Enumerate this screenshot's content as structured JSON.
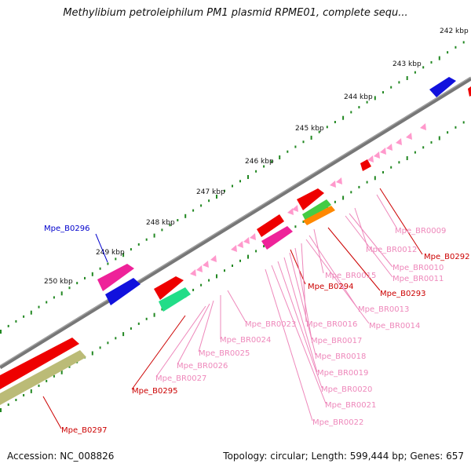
{
  "title": "Methylibium petroleiphilum PM1 plasmid RPME01, complete sequ...",
  "footer": {
    "accession": "Accession: NC_008826",
    "info": "Topology: circular; Length: 599,444 bp; Genes: 657"
  },
  "colors": {
    "backbone": "#777777",
    "tick": "#228822",
    "cds_red": "#ee0000",
    "cds_blue": "#1111dd",
    "cds_magenta": "#ee2299",
    "cds_green": "#22dd88",
    "cds_lime": "#44cc44",
    "cds_orange": "#ff8800",
    "cds_olive": "#bbbb77",
    "rna_pink": "#ff99cc",
    "label_red": "#cc0000",
    "label_blue": "#0000cc",
    "label_pink": "#ee88bb"
  },
  "kbp_labels": [
    "242 kbp",
    "243 kbp",
    "244 kbp",
    "245 kbp",
    "246 kbp",
    "247 kbp",
    "248 kbp",
    "249 kbp",
    "250 kbp"
  ],
  "gene_labels": [
    "Mpe_B0296",
    "Mpe_BR0009",
    "Mpe_BR0012",
    "Mpe_B0292",
    "Mpe_BR0010",
    "Mpe_BR0011",
    "Mpe_BR0015",
    "Mpe_B0294",
    "Mpe_B0293",
    "Mpe_BR0013",
    "Mpe_BR0014",
    "Mpe_BR0023",
    "Mpe_BR0016",
    "Mpe_BR0024",
    "Mpe_BR0017",
    "Mpe_BR0025",
    "Mpe_BR0018",
    "Mpe_BR0026",
    "Mpe_BR0019",
    "Mpe_BR0027",
    "Mpe_BR0020",
    "Mpe_B0295",
    "Mpe_BR0021",
    "Mpe_BR0022",
    "Mpe_B0297"
  ]
}
